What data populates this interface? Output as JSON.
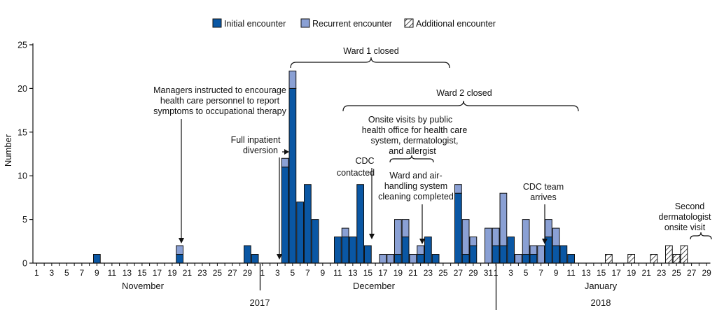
{
  "colors": {
    "initial": "#0a57a4",
    "recurrent": "#8aa0d4",
    "stroke": "#111111",
    "bg": "#ffffff"
  },
  "chart_data": {
    "type": "bar",
    "stacked": true,
    "title": "",
    "ylabel": "Number",
    "xlabel": "",
    "ylim": [
      0,
      25
    ],
    "yticks": [
      0,
      5,
      10,
      15,
      20,
      25
    ],
    "legend": {
      "position": "top",
      "entries": [
        "Initial encounter",
        "Recurrent encounter",
        "Additional encounter"
      ]
    },
    "month_labels": [
      "November",
      "December",
      "January"
    ],
    "year_labels": [
      "2017",
      "2018"
    ],
    "months": [
      {
        "name": "November",
        "days": 30
      },
      {
        "name": "December",
        "days": 31
      },
      {
        "name": "January",
        "days": 29
      }
    ],
    "series": [
      {
        "name": "Initial encounter",
        "style": "solid-dark",
        "points": [
          {
            "date": "Nov 9",
            "value": 1
          },
          {
            "date": "Nov 20",
            "value": 1
          },
          {
            "date": "Nov 29",
            "value": 2
          },
          {
            "date": "Nov 30",
            "value": 1
          },
          {
            "date": "Dec 4",
            "value": 11
          },
          {
            "date": "Dec 5",
            "value": 20
          },
          {
            "date": "Dec 6",
            "value": 7
          },
          {
            "date": "Dec 7",
            "value": 9
          },
          {
            "date": "Dec 8",
            "value": 5
          },
          {
            "date": "Dec 11",
            "value": 3
          },
          {
            "date": "Dec 12",
            "value": 3
          },
          {
            "date": "Dec 13",
            "value": 3
          },
          {
            "date": "Dec 14",
            "value": 9
          },
          {
            "date": "Dec 15",
            "value": 2
          },
          {
            "date": "Dec 19",
            "value": 1
          },
          {
            "date": "Dec 20",
            "value": 3
          },
          {
            "date": "Dec 22",
            "value": 1
          },
          {
            "date": "Dec 23",
            "value": 3
          },
          {
            "date": "Dec 24",
            "value": 1
          },
          {
            "date": "Dec 27",
            "value": 8
          },
          {
            "date": "Dec 28",
            "value": 1
          },
          {
            "date": "Dec 29",
            "value": 2
          },
          {
            "date": "Jan 1",
            "value": 2
          },
          {
            "date": "Jan 2",
            "value": 2
          },
          {
            "date": "Jan 3",
            "value": 3
          },
          {
            "date": "Jan 5",
            "value": 1
          },
          {
            "date": "Jan 6",
            "value": 1
          },
          {
            "date": "Jan 8",
            "value": 3
          },
          {
            "date": "Jan 9",
            "value": 2
          },
          {
            "date": "Jan 10",
            "value": 2
          },
          {
            "date": "Jan 11",
            "value": 1
          }
        ]
      },
      {
        "name": "Recurrent encounter",
        "style": "solid-light",
        "points": [
          {
            "date": "Nov 20",
            "value": 1
          },
          {
            "date": "Dec 4",
            "value": 1
          },
          {
            "date": "Dec 5",
            "value": 2
          },
          {
            "date": "Dec 12",
            "value": 1
          },
          {
            "date": "Dec 17",
            "value": 1
          },
          {
            "date": "Dec 18",
            "value": 1
          },
          {
            "date": "Dec 19",
            "value": 4
          },
          {
            "date": "Dec 20",
            "value": 2
          },
          {
            "date": "Dec 21",
            "value": 1
          },
          {
            "date": "Dec 22",
            "value": 1
          },
          {
            "date": "Dec 27",
            "value": 1
          },
          {
            "date": "Dec 28",
            "value": 4
          },
          {
            "date": "Dec 29",
            "value": 1
          },
          {
            "date": "Dec 31",
            "value": 4
          },
          {
            "date": "Jan 1",
            "value": 2
          },
          {
            "date": "Jan 2",
            "value": 6
          },
          {
            "date": "Jan 4",
            "value": 1
          },
          {
            "date": "Jan 5",
            "value": 4
          },
          {
            "date": "Jan 6",
            "value": 1
          },
          {
            "date": "Jan 7",
            "value": 2
          },
          {
            "date": "Jan 8",
            "value": 2
          },
          {
            "date": "Jan 9",
            "value": 2
          }
        ]
      },
      {
        "name": "Additional encounter",
        "style": "hatched",
        "points": [
          {
            "date": "Jan 16",
            "value": 1
          },
          {
            "date": "Jan 19",
            "value": 1
          },
          {
            "date": "Jan 22",
            "value": 1
          },
          {
            "date": "Jan 24",
            "value": 2
          },
          {
            "date": "Jan 25",
            "value": 1
          },
          {
            "date": "Jan 26",
            "value": 2
          }
        ]
      }
    ],
    "annotations": [
      {
        "text": "Managers instructed to encourage\nhealth care personnel to report\nsymptoms to occupational therapy",
        "points_to": "Nov 20"
      },
      {
        "text": "Full inpatient\ndiversion",
        "points_to": "Dec 3"
      },
      {
        "text": "CDC\ncontacted",
        "points_to": "Dec 15"
      },
      {
        "text": "Onsite visits by public\nhealth office for health care\nsystem, dermatologist,\nand allergist",
        "spans": [
          "Dec 18",
          "Dec 23"
        ]
      },
      {
        "text": "Ward and air-\nhandling system\ncleaning completed",
        "points_to": "Dec 22"
      },
      {
        "text": "CDC team\narrives",
        "points_to": "Jan 7"
      },
      {
        "text": "Second\ndermatologist\nonsite visit",
        "spans": [
          "Jan 27",
          "Jan 29"
        ]
      },
      {
        "text": "Ward 1 closed",
        "spans": [
          "Dec 5",
          "Dec 25"
        ]
      },
      {
        "text": "Ward 2 closed",
        "spans": [
          "Dec 11",
          "Jan 11"
        ]
      }
    ]
  }
}
